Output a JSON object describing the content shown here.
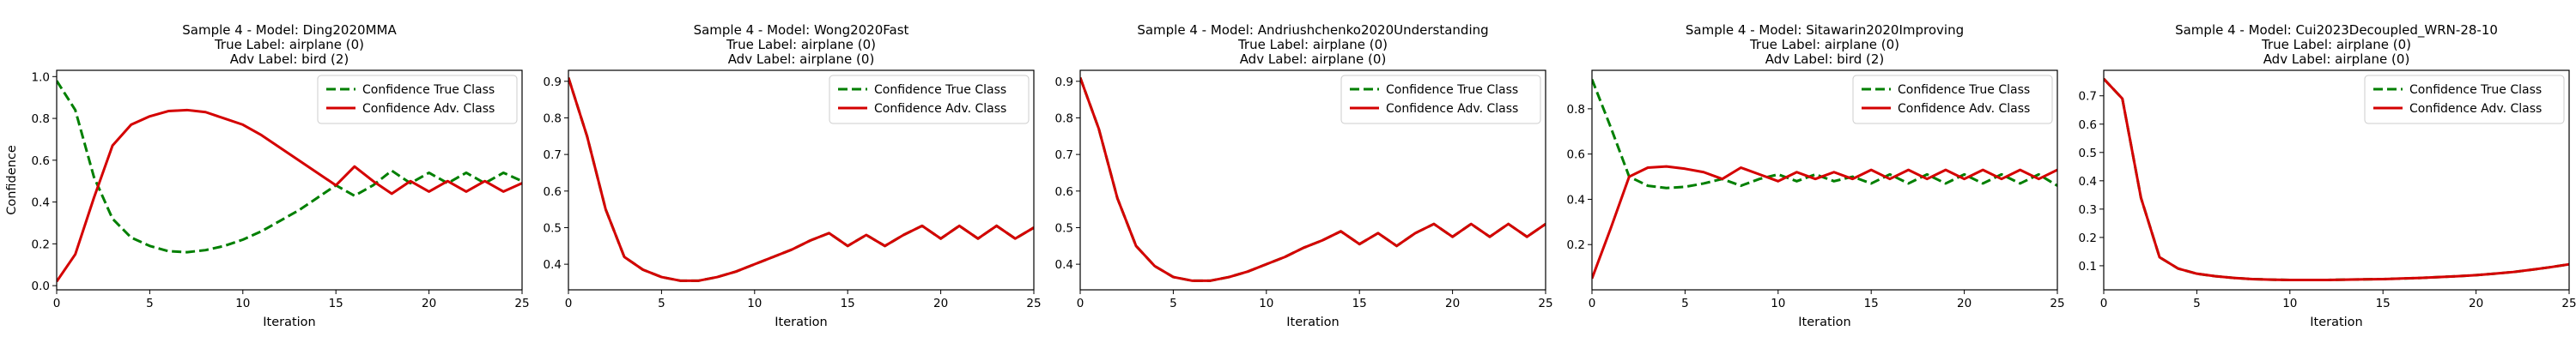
{
  "chart_data": [
    {
      "type": "line",
      "title": [
        "Sample 4 - Model: Ding2020MMA",
        "True Label: airplane (0)",
        "Adv Label: bird (2)"
      ],
      "xlabel": "Iteration",
      "ylabel": "Confidence",
      "xlim": [
        0,
        25
      ],
      "ylim": [
        -0.02,
        1.03
      ],
      "xticks": [
        0,
        5,
        10,
        15,
        20,
        25
      ],
      "yticks": [
        0.0,
        0.2,
        0.4,
        0.6,
        0.8,
        1.0
      ],
      "ytick_labels": [
        "0.0",
        "0.2",
        "0.4",
        "0.6",
        "0.8",
        "1.0"
      ],
      "legend_position": "top-right",
      "x": [
        0,
        1,
        2,
        3,
        4,
        5,
        6,
        7,
        8,
        9,
        10,
        11,
        12,
        13,
        14,
        15,
        16,
        17,
        18,
        19,
        20,
        21,
        22,
        23,
        24,
        25
      ],
      "series": [
        {
          "name": "Confidence True Class",
          "color": "#007f00",
          "dash": "dashed",
          "values": [
            0.98,
            0.84,
            0.52,
            0.32,
            0.23,
            0.19,
            0.165,
            0.16,
            0.17,
            0.19,
            0.22,
            0.26,
            0.31,
            0.36,
            0.42,
            0.48,
            0.43,
            0.48,
            0.55,
            0.49,
            0.54,
            0.49,
            0.54,
            0.49,
            0.54,
            0.5
          ]
        },
        {
          "name": "Confidence Adv. Class",
          "color": "#d40000",
          "dash": "solid",
          "values": [
            0.02,
            0.15,
            0.42,
            0.67,
            0.77,
            0.81,
            0.835,
            0.84,
            0.83,
            0.8,
            0.77,
            0.72,
            0.66,
            0.6,
            0.54,
            0.48,
            0.57,
            0.5,
            0.44,
            0.5,
            0.45,
            0.5,
            0.45,
            0.5,
            0.45,
            0.49
          ]
        }
      ]
    },
    {
      "type": "line",
      "title": [
        "Sample 4 - Model: Wong2020Fast",
        "True Label: airplane (0)",
        "Adv Label: airplane (0)"
      ],
      "xlabel": "Iteration",
      "ylabel": "",
      "xlim": [
        0,
        25
      ],
      "ylim": [
        0.33,
        0.93
      ],
      "xticks": [
        0,
        5,
        10,
        15,
        20,
        25
      ],
      "yticks": [
        0.4,
        0.5,
        0.6,
        0.7,
        0.8,
        0.9
      ],
      "ytick_labels": [
        "0.4",
        "0.5",
        "0.6",
        "0.7",
        "0.8",
        "0.9"
      ],
      "legend_position": "top-right",
      "x": [
        0,
        1,
        2,
        3,
        4,
        5,
        6,
        7,
        8,
        9,
        10,
        11,
        12,
        13,
        14,
        15,
        16,
        17,
        18,
        19,
        20,
        21,
        22,
        23,
        24,
        25
      ],
      "series": [
        {
          "name": "Confidence True Class",
          "color": "#007f00",
          "dash": "dashed",
          "values": [
            0.91,
            0.75,
            0.55,
            0.42,
            0.385,
            0.365,
            0.355,
            0.355,
            0.365,
            0.38,
            0.4,
            0.42,
            0.44,
            0.465,
            0.485,
            0.45,
            0.48,
            0.45,
            0.48,
            0.505,
            0.47,
            0.505,
            0.47,
            0.505,
            0.47,
            0.5
          ]
        },
        {
          "name": "Confidence Adv. Class",
          "color": "#d40000",
          "dash": "solid",
          "values": [
            0.91,
            0.75,
            0.55,
            0.42,
            0.385,
            0.365,
            0.355,
            0.355,
            0.365,
            0.38,
            0.4,
            0.42,
            0.44,
            0.465,
            0.485,
            0.45,
            0.48,
            0.45,
            0.48,
            0.505,
            0.47,
            0.505,
            0.47,
            0.505,
            0.47,
            0.5
          ]
        }
      ]
    },
    {
      "type": "line",
      "title": [
        "Sample 4 - Model: Andriushchenko2020Understanding",
        "True Label: airplane (0)",
        "Adv Label: airplane (0)"
      ],
      "xlabel": "Iteration",
      "ylabel": "",
      "xlim": [
        0,
        25
      ],
      "ylim": [
        0.33,
        0.93
      ],
      "xticks": [
        0,
        5,
        10,
        15,
        20,
        25
      ],
      "yticks": [
        0.4,
        0.5,
        0.6,
        0.7,
        0.8,
        0.9
      ],
      "ytick_labels": [
        "0.4",
        "0.5",
        "0.6",
        "0.7",
        "0.8",
        "0.9"
      ],
      "legend_position": "top-right",
      "x": [
        0,
        1,
        2,
        3,
        4,
        5,
        6,
        7,
        8,
        9,
        10,
        11,
        12,
        13,
        14,
        15,
        16,
        17,
        18,
        19,
        20,
        21,
        22,
        23,
        24,
        25
      ],
      "series": [
        {
          "name": "Confidence True Class",
          "color": "#007f00",
          "dash": "dashed",
          "values": [
            0.91,
            0.77,
            0.58,
            0.45,
            0.395,
            0.365,
            0.355,
            0.355,
            0.365,
            0.38,
            0.4,
            0.42,
            0.445,
            0.465,
            0.49,
            0.455,
            0.485,
            0.45,
            0.485,
            0.51,
            0.475,
            0.51,
            0.475,
            0.51,
            0.475,
            0.51
          ]
        },
        {
          "name": "Confidence Adv. Class",
          "color": "#d40000",
          "dash": "solid",
          "values": [
            0.91,
            0.77,
            0.58,
            0.45,
            0.395,
            0.365,
            0.355,
            0.355,
            0.365,
            0.38,
            0.4,
            0.42,
            0.445,
            0.465,
            0.49,
            0.455,
            0.485,
            0.45,
            0.485,
            0.51,
            0.475,
            0.51,
            0.475,
            0.51,
            0.475,
            0.51
          ]
        }
      ]
    },
    {
      "type": "line",
      "title": [
        "Sample 4 - Model: Sitawarin2020Improving",
        "True Label: airplane (0)",
        "Adv Label: bird (2)"
      ],
      "xlabel": "Iteration",
      "ylabel": "",
      "xlim": [
        0,
        25
      ],
      "ylim": [
        0.0,
        0.97
      ],
      "xticks": [
        0,
        5,
        10,
        15,
        20,
        25
      ],
      "yticks": [
        0.2,
        0.4,
        0.6,
        0.8
      ],
      "ytick_labels": [
        "0.2",
        "0.4",
        "0.6",
        "0.8"
      ],
      "legend_position": "top-right",
      "x": [
        0,
        1,
        2,
        3,
        4,
        5,
        6,
        7,
        8,
        9,
        10,
        11,
        12,
        13,
        14,
        15,
        16,
        17,
        18,
        19,
        20,
        21,
        22,
        23,
        24,
        25
      ],
      "series": [
        {
          "name": "Confidence True Class",
          "color": "#007f00",
          "dash": "dashed",
          "values": [
            0.93,
            0.72,
            0.5,
            0.46,
            0.45,
            0.455,
            0.47,
            0.49,
            0.46,
            0.49,
            0.51,
            0.48,
            0.51,
            0.48,
            0.5,
            0.47,
            0.51,
            0.47,
            0.51,
            0.47,
            0.51,
            0.47,
            0.51,
            0.47,
            0.51,
            0.46
          ]
        },
        {
          "name": "Confidence Adv. Class",
          "color": "#d40000",
          "dash": "solid",
          "values": [
            0.05,
            0.27,
            0.5,
            0.54,
            0.545,
            0.535,
            0.52,
            0.49,
            0.54,
            0.51,
            0.48,
            0.52,
            0.49,
            0.52,
            0.49,
            0.53,
            0.49,
            0.53,
            0.49,
            0.53,
            0.49,
            0.53,
            0.49,
            0.53,
            0.49,
            0.53
          ]
        }
      ]
    },
    {
      "type": "line",
      "title": [
        "Sample 4 - Model: Cui2023Decoupled_WRN-28-10",
        "True Label: airplane (0)",
        "Adv Label: airplane (0)"
      ],
      "xlabel": "Iteration",
      "ylabel": "",
      "xlim": [
        0,
        25
      ],
      "ylim": [
        0.015,
        0.79
      ],
      "xticks": [
        0,
        5,
        10,
        15,
        20,
        25
      ],
      "yticks": [
        0.1,
        0.2,
        0.3,
        0.4,
        0.5,
        0.6,
        0.7
      ],
      "ytick_labels": [
        "0.1",
        "0.2",
        "0.3",
        "0.4",
        "0.5",
        "0.6",
        "0.7"
      ],
      "legend_position": "top-right",
      "x": [
        0,
        1,
        2,
        3,
        4,
        5,
        6,
        7,
        8,
        9,
        10,
        11,
        12,
        13,
        14,
        15,
        16,
        17,
        18,
        19,
        20,
        21,
        22,
        23,
        24,
        25
      ],
      "series": [
        {
          "name": "Confidence True Class",
          "color": "#007f00",
          "dash": "dashed",
          "values": [
            0.76,
            0.69,
            0.34,
            0.13,
            0.09,
            0.072,
            0.063,
            0.057,
            0.053,
            0.051,
            0.05,
            0.05,
            0.05,
            0.051,
            0.052,
            0.053,
            0.055,
            0.057,
            0.06,
            0.063,
            0.067,
            0.072,
            0.078,
            0.086,
            0.095,
            0.105
          ]
        },
        {
          "name": "Confidence Adv. Class",
          "color": "#d40000",
          "dash": "solid",
          "values": [
            0.76,
            0.69,
            0.34,
            0.13,
            0.09,
            0.072,
            0.063,
            0.057,
            0.053,
            0.051,
            0.05,
            0.05,
            0.05,
            0.051,
            0.052,
            0.053,
            0.055,
            0.057,
            0.06,
            0.063,
            0.067,
            0.072,
            0.078,
            0.086,
            0.095,
            0.105
          ]
        }
      ]
    }
  ]
}
